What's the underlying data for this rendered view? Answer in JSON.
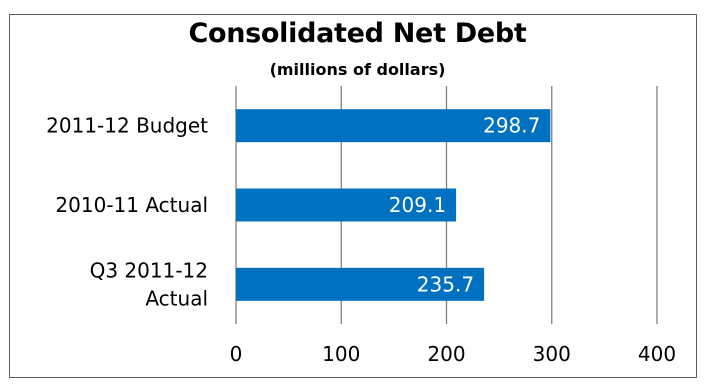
{
  "chart_data": {
    "type": "bar",
    "orientation": "horizontal",
    "title": "Consolidated Net Debt",
    "subtitle": "(millions of dollars)",
    "categories": [
      "2011-12 Budget",
      "2010-11 Actual",
      "Q3 2011-12 Actual"
    ],
    "category_lines": [
      [
        "2011-12 Budget"
      ],
      [
        "2010-11 Actual"
      ],
      [
        "Q3 2011-12",
        "Actual"
      ]
    ],
    "values": [
      298.7,
      209.1,
      235.7
    ],
    "value_labels": [
      "298.7",
      "209.1",
      "235.7"
    ],
    "xlim": [
      0,
      400
    ],
    "xticks": [
      0,
      100,
      200,
      300,
      400
    ],
    "xtick_labels": [
      "0",
      "100",
      "200",
      "300",
      "400"
    ],
    "grid": "vertical",
    "legend": "none",
    "colors": {
      "bar": "#0070c0",
      "bar_label": "#ffffff",
      "grid": "#7f7f7f",
      "text": "#000000",
      "border": "#5a5a5a"
    }
  }
}
